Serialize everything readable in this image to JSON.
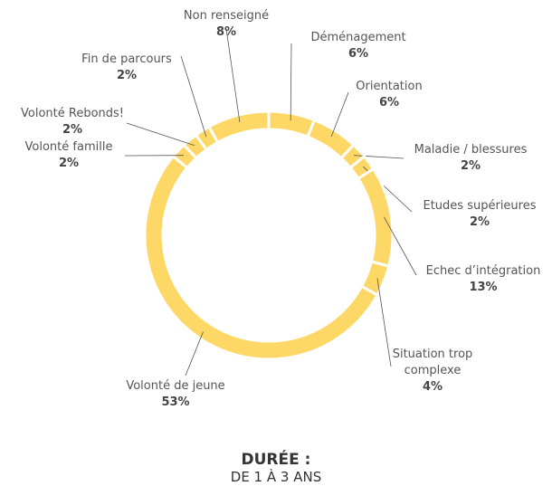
{
  "chart_data": {
    "type": "donut",
    "title": "DURÉE :",
    "subtitle": "DE 1 À 3 ANS",
    "categories": [
      "Déménagement",
      "Orientation",
      "Maladie / blessures",
      "Etudes supérieures",
      "Echec d’intégration",
      "Situation trop complexe",
      "Volonté de jeune",
      "Volonté famille",
      "Volonté Rebonds!",
      "Fin de parcours",
      "Non renseigné"
    ],
    "values": [
      6,
      6,
      2,
      2,
      13,
      4,
      53,
      2,
      2,
      2,
      8
    ],
    "value_labels": [
      "6%",
      "6%",
      "2%",
      "2%",
      "13%",
      "4%",
      "53%",
      "2%",
      "2%",
      "2%",
      "8%"
    ],
    "color": "#fdd866"
  }
}
